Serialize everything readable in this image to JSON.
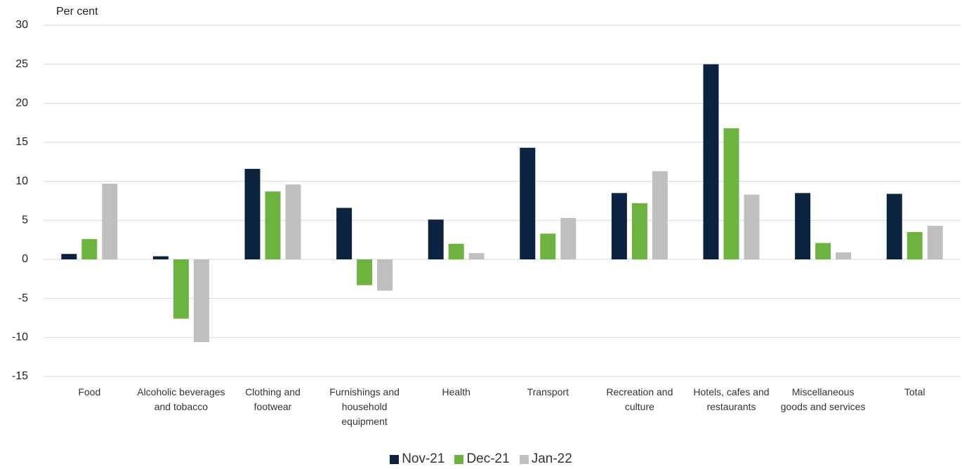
{
  "chart_data": {
    "type": "bar",
    "y_label": "Per cent",
    "categories": [
      "Food",
      "Alcoholic beverages and tobacco",
      "Clothing and footwear",
      "Furnishings and household equipment",
      "Health",
      "Transport",
      "Recreation and culture",
      "Hotels, cafes and restaurants",
      "Miscellaneous goods and services",
      "Total"
    ],
    "series": [
      {
        "name": "Nov-21",
        "color": "#0b2341",
        "values": [
          0.7,
          0.4,
          11.6,
          6.6,
          5.1,
          14.3,
          8.5,
          25.0,
          8.5,
          8.4
        ]
      },
      {
        "name": "Dec-21",
        "color": "#6db33f",
        "values": [
          2.6,
          -7.6,
          8.7,
          -3.3,
          2.0,
          3.3,
          7.2,
          16.8,
          2.1,
          3.5
        ]
      },
      {
        "name": "Jan-22",
        "color": "#bfbfbf",
        "values": [
          9.7,
          -10.6,
          9.6,
          -4.0,
          0.8,
          5.3,
          11.3,
          8.3,
          0.9,
          4.3
        ]
      }
    ],
    "ylim": [
      -15,
      30
    ],
    "yticks": [
      -15,
      -10,
      -5,
      0,
      5,
      10,
      15,
      20,
      25,
      30
    ],
    "grid": true,
    "legend": "bottom"
  }
}
